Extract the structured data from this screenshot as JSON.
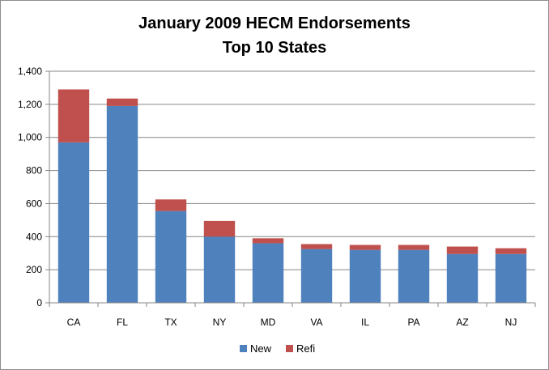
{
  "chart_data": {
    "type": "bar",
    "stacked": true,
    "title": "January 2009 HECM Endorsements",
    "subtitle": "Top 10 States",
    "xlabel": "",
    "ylabel": "",
    "categories": [
      "CA",
      "FL",
      "TX",
      "NY",
      "MD",
      "VA",
      "IL",
      "PA",
      "AZ",
      "NJ"
    ],
    "series": [
      {
        "name": "New",
        "color": "#4f81bd",
        "values": [
          970,
          1190,
          555,
          400,
          360,
          325,
          320,
          320,
          295,
          295
        ]
      },
      {
        "name": "Refi",
        "color": "#c0504d",
        "values": [
          320,
          45,
          70,
          95,
          30,
          30,
          30,
          30,
          45,
          35
        ]
      }
    ],
    "ylim": [
      0,
      1400
    ],
    "yticks": [
      0,
      200,
      400,
      600,
      800,
      1000,
      1200,
      1400
    ],
    "ytick_labels": [
      "0",
      "200",
      "400",
      "600",
      "800",
      "1,000",
      "1,200",
      "1,400"
    ],
    "grid": true,
    "legend_position": "bottom"
  }
}
